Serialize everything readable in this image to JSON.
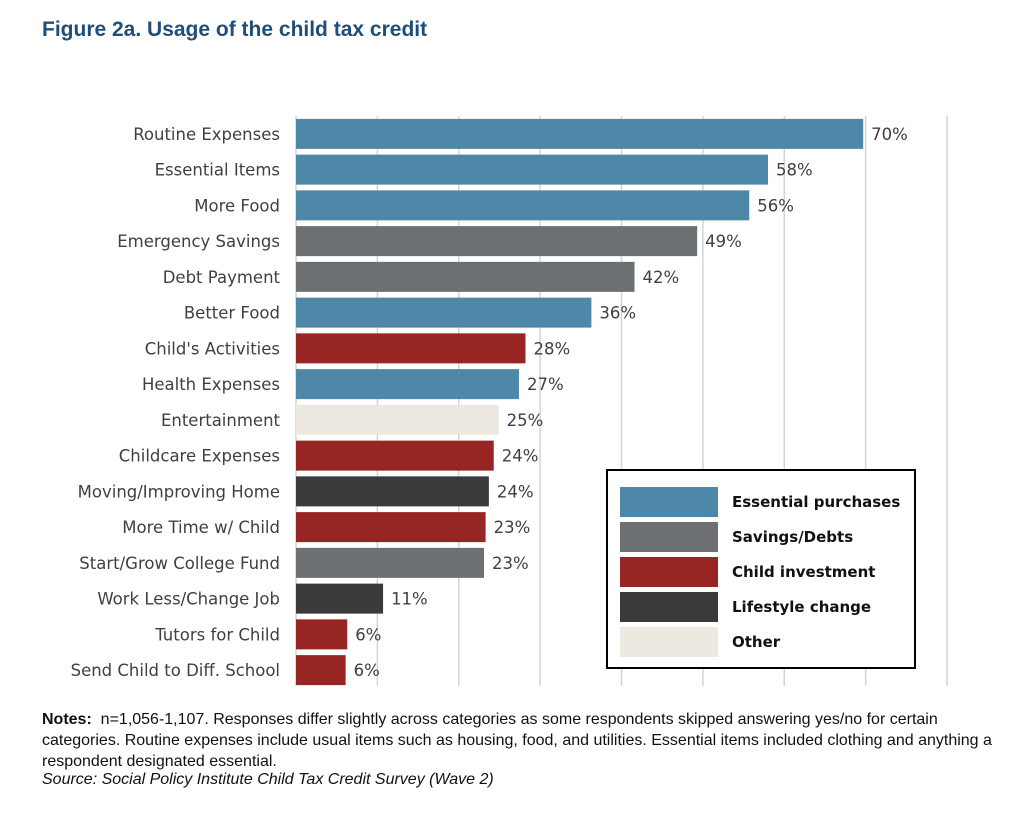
{
  "title": "Figure 2a. Usage of the child tax credit",
  "chart_data": {
    "type": "bar",
    "orientation": "horizontal",
    "xlim": [
      0,
      80
    ],
    "grid": true,
    "legend_position": "bottom-right",
    "categories": [
      "Routine Expenses",
      "Essential Items",
      "More Food",
      "Emergency Savings",
      "Debt Payment",
      "Better Food",
      "Child's Activities",
      "Health Expenses",
      "Entertainment",
      "Childcare Expenses",
      "Moving/Improving Home",
      "More Time w/ Child",
      "Start/Grow College Fund",
      "Work Less/Change Job",
      "Tutors for Child",
      "Send Child to Diff. School"
    ],
    "values": [
      69.7,
      58,
      55.7,
      49.3,
      41.6,
      36.3,
      28.2,
      27.4,
      24.9,
      24.3,
      23.7,
      23.3,
      23.1,
      10.7,
      6.3,
      6.1
    ],
    "labels": [
      "70%",
      "58%",
      "56%",
      "49%",
      "42%",
      "36%",
      "28%",
      "27%",
      "25%",
      "24%",
      "24%",
      "23%",
      "23%",
      "11%",
      "6%",
      "6%"
    ],
    "groups": [
      "essential",
      "essential",
      "essential",
      "savings",
      "savings",
      "essential",
      "child",
      "essential",
      "other",
      "child",
      "lifestyle",
      "child",
      "savings",
      "lifestyle",
      "child",
      "child"
    ],
    "legend": [
      {
        "key": "essential",
        "label": "Essential purchases",
        "color": "#4f87a8"
      },
      {
        "key": "savings",
        "label": "Savings/Debts",
        "color": "#6d7072"
      },
      {
        "key": "child",
        "label": "Child investment",
        "color": "#972524"
      },
      {
        "key": "lifestyle",
        "label": "Lifestyle change",
        "color": "#3a3a3c"
      },
      {
        "key": "other",
        "label": "Other",
        "color": "#ede9e1"
      }
    ]
  },
  "notes": {
    "label": "Notes:",
    "text": "n=1,056-1,107. Responses differ slightly across categories as some respondents skipped answering yes/no for certain categories. Routine expenses include usual items such as housing, food, and utilities. Essential items included clothing and anything a respondent designated essential.",
    "source": "Source: Social Policy Institute Child Tax Credit Survey (Wave 2)"
  }
}
